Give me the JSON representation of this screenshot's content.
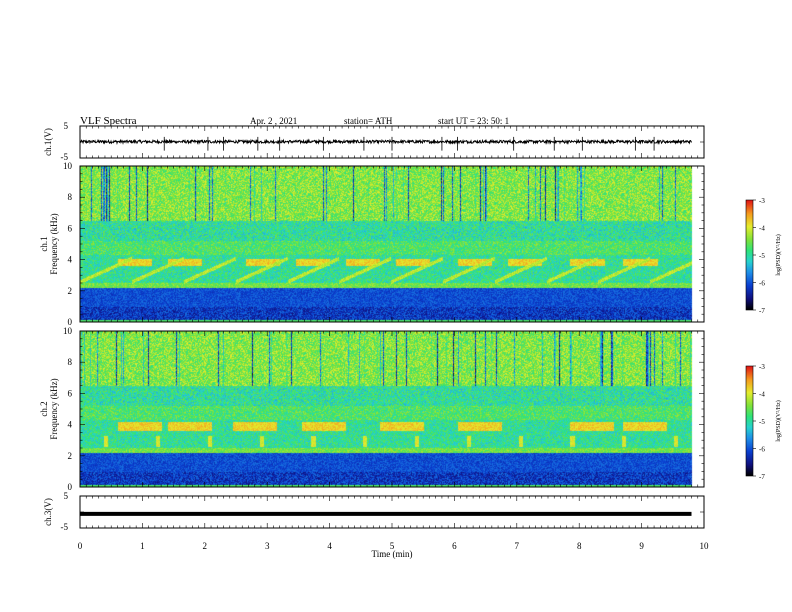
{
  "header": {
    "title": "VLF  Spectra",
    "date": "Apr. 2  , 2021",
    "station": "station= ATH",
    "start": "start  UT  =    23: 50: 1"
  },
  "colors": {
    "colormap": [
      "#000000",
      "#10107e",
      "#0a3fd0",
      "#1f8fe8",
      "#27d2cf",
      "#2ee37a",
      "#7fe23a",
      "#e5ed2e",
      "#f59a1e",
      "#e11616",
      "#ffffff"
    ]
  },
  "chart_data": [
    {
      "panel": "ch1-waveform",
      "type": "line",
      "ylabel": "ch.1(V)",
      "ylim": [
        -5,
        5
      ],
      "yticks": [
        "5",
        "-5"
      ],
      "xlim": [
        0,
        10
      ],
      "x_end": 9.8,
      "baseline_v": 0.1,
      "noise_v": 0.45,
      "spikes_min": [
        1.35,
        2.05,
        2.3,
        2.85,
        3.2,
        3.9,
        4.55,
        5.0,
        5.8,
        6.05,
        6.95,
        7.6,
        8.05,
        8.9,
        9.2
      ]
    },
    {
      "panel": "ch1-spectrogram",
      "type": "heatmap",
      "ylabel": "ch.1\nFrequency  (kHz)",
      "ylim": [
        0,
        10
      ],
      "yticks": [
        "0",
        "2",
        "4",
        "6",
        "8",
        "10"
      ],
      "xlim": [
        0,
        10
      ],
      "x_end": 9.8,
      "zlim": [
        -7,
        -3
      ],
      "colorbar_label": "log(PSD)(V²/Hz)",
      "colorbar_ticks": [
        "-3",
        "-4",
        "-5",
        "-6",
        "-7"
      ],
      "tone_band_khz": [
        3.6,
        4.1
      ],
      "tone_starts_min": [
        0.6,
        1.4,
        2.65,
        3.45,
        4.25,
        5.05,
        6.05,
        6.85,
        7.85,
        8.7
      ],
      "tone_len_min": 0.55
    },
    {
      "panel": "ch2-spectrogram",
      "type": "heatmap",
      "ylabel": "ch.2\nFrequency  (kHz)",
      "ylim": [
        0,
        10
      ],
      "yticks": [
        "0",
        "2",
        "4",
        "6",
        "8",
        "10"
      ],
      "xlim": [
        0,
        10
      ],
      "x_end": 9.8,
      "zlim": [
        -7,
        -3
      ],
      "colorbar_label": "log(PSD)(V²/Hz)",
      "colorbar_ticks": [
        "-3",
        "-4",
        "-5",
        "-6",
        "-7"
      ],
      "tone_band_khz": [
        3.6,
        4.2
      ],
      "tone_starts_min": [
        0.6,
        1.4,
        2.45,
        3.55,
        4.8,
        6.05,
        7.85,
        8.7
      ],
      "tone_len_min": 0.7
    },
    {
      "panel": "ch3-waveform",
      "type": "line",
      "ylabel": "ch.3(V)",
      "ylim": [
        -5,
        5
      ],
      "yticks": [
        "5",
        "-5"
      ],
      "xlim": [
        0,
        10
      ],
      "x_end": 9.8,
      "baseline_v": -0.6,
      "noise_v": 0.0
    }
  ],
  "xaxis": {
    "label": "Time  (min)",
    "ticks": [
      "0",
      "1",
      "2",
      "3",
      "4",
      "5",
      "6",
      "7",
      "8",
      "9",
      "10"
    ]
  }
}
